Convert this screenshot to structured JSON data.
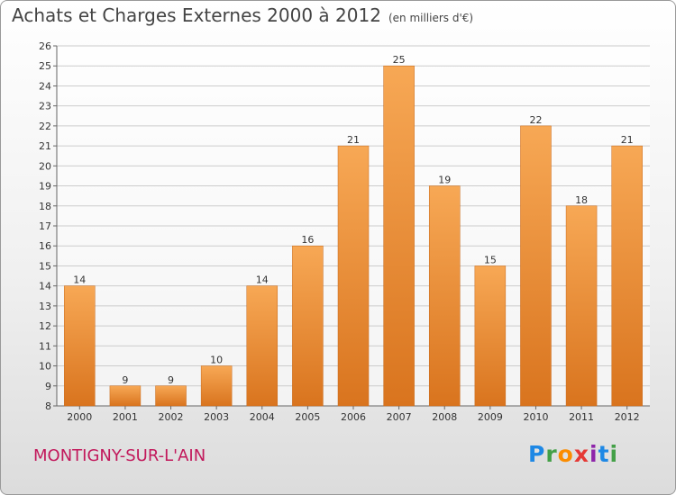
{
  "header": {
    "title": "Achats et Charges Externes 2000 à 2012",
    "unit": "(en milliers d'€)"
  },
  "footer": {
    "location": "MONTIGNY-SUR-L'AIN",
    "logo": "Proxiti"
  },
  "colors": {
    "bar_light": "#f7a855",
    "bar_dark": "#d9741e",
    "location_text": "#c2185b"
  },
  "chart_data": {
    "type": "bar",
    "categories": [
      "2000",
      "2001",
      "2002",
      "2003",
      "2004",
      "2005",
      "2006",
      "2007",
      "2008",
      "2009",
      "2010",
      "2011",
      "2012"
    ],
    "values": [
      14,
      9,
      9,
      10,
      14,
      16,
      21,
      25,
      19,
      15,
      22,
      18,
      21
    ],
    "ylim": [
      8,
      26
    ],
    "yticks": [
      8,
      9,
      10,
      11,
      12,
      13,
      14,
      15,
      16,
      17,
      18,
      19,
      20,
      21,
      22,
      23,
      24,
      25,
      26
    ],
    "grid": true
  }
}
